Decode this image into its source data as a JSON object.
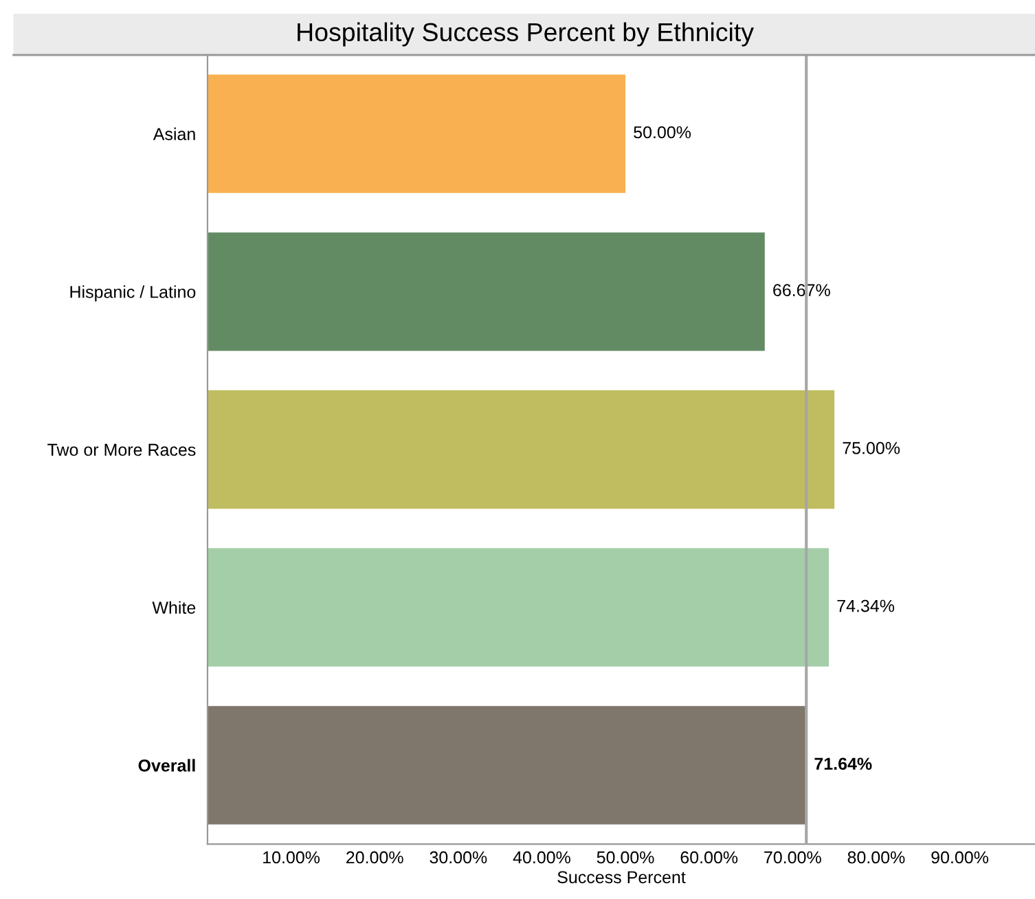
{
  "chart_data": {
    "type": "bar",
    "orientation": "horizontal",
    "title": "Hospitality Success Percent by Ethnicity",
    "xlabel": "Success Percent",
    "categories": [
      "Asian",
      "Hispanic / Latino",
      "Two or More Races",
      "White",
      "Overall"
    ],
    "values": [
      50.0,
      66.67,
      75.0,
      74.34,
      71.64
    ],
    "colors": [
      "#f9b050",
      "#628b63",
      "#c0bc60",
      "#a3cea8",
      "#7f766c"
    ],
    "value_labels": [
      "50.00%",
      "66.67%",
      "75.00%",
      "74.34%",
      "71.64%"
    ],
    "xlim": [
      0,
      99
    ],
    "xticks": [
      {
        "value": 10,
        "label": "10.00%"
      },
      {
        "value": 20,
        "label": "20.00%"
      },
      {
        "value": 30,
        "label": "30.00%"
      },
      {
        "value": 40,
        "label": "40.00%"
      },
      {
        "value": 50,
        "label": "50.00%"
      },
      {
        "value": 60,
        "label": "60.00%"
      },
      {
        "value": 70,
        "label": "70.00%"
      },
      {
        "value": 80,
        "label": "80.00%"
      },
      {
        "value": 90,
        "label": "90.00%"
      }
    ],
    "ref_lines": [
      {
        "axis": "x",
        "value": 71.64,
        "color": "#a6a6a6"
      }
    ],
    "grid": false,
    "legend": false
  }
}
